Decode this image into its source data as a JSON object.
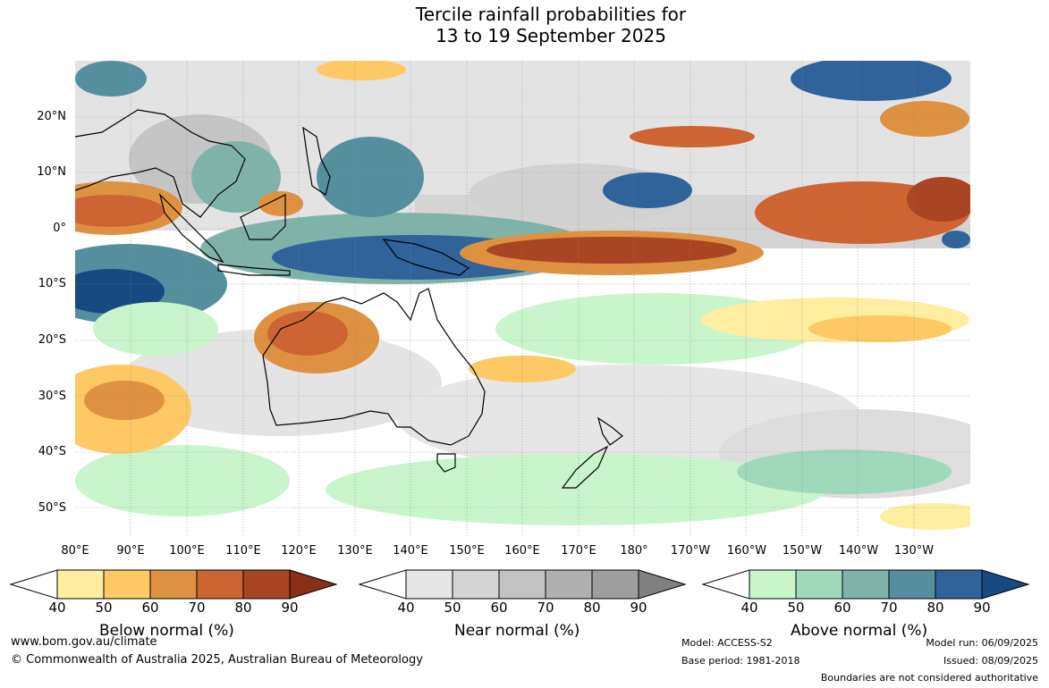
{
  "title_line1": "Tercile rainfall probabilities for",
  "title_line2": "13 to 19 September 2025",
  "lat_labels": [
    "20°N",
    "10°N",
    "0°",
    "10°S",
    "20°S",
    "30°S",
    "40°S",
    "50°S"
  ],
  "lon_labels": [
    "80°E",
    "90°E",
    "100°E",
    "110°E",
    "120°E",
    "130°E",
    "140°E",
    "150°E",
    "160°E",
    "170°E",
    "180°",
    "170°W",
    "160°W",
    "150°W",
    "140°W",
    "130°W"
  ],
  "legends": [
    {
      "title": "Below normal (%)",
      "ticks": [
        "40",
        "50",
        "60",
        "70",
        "80",
        "90"
      ],
      "colors": [
        "#ffffff",
        "#ffeda0",
        "#fec865",
        "#de9140",
        "#cf6433",
        "#a94522",
        "#8b3018"
      ]
    },
    {
      "title": "Near normal (%)",
      "ticks": [
        "40",
        "50",
        "60",
        "70",
        "80",
        "90"
      ],
      "colors": [
        "#ffffff",
        "#e6e6e6",
        "#d4d4d4",
        "#c2c2c2",
        "#b0b0b0",
        "#9e9e9e",
        "#808080"
      ]
    },
    {
      "title": "Above normal (%)",
      "ticks": [
        "40",
        "50",
        "60",
        "70",
        "80",
        "90"
      ],
      "colors": [
        "#ffffff",
        "#c8f5cc",
        "#a0d8bc",
        "#7fb3a9",
        "#558f9e",
        "#30639a",
        "#174a80"
      ]
    }
  ],
  "footer": {
    "url": "www.bom.gov.au/climate",
    "copyright": "© Commonwealth of Australia 2025, Australian Bureau of Meteorology",
    "model": "Model: ACCESS-S2",
    "base_period": "Base period: 1981-2018",
    "model_run": "Model run: 06/09/2025",
    "issued": "Issued: 08/09/2025",
    "boundaries": "Boundaries are not considered authoritative"
  }
}
